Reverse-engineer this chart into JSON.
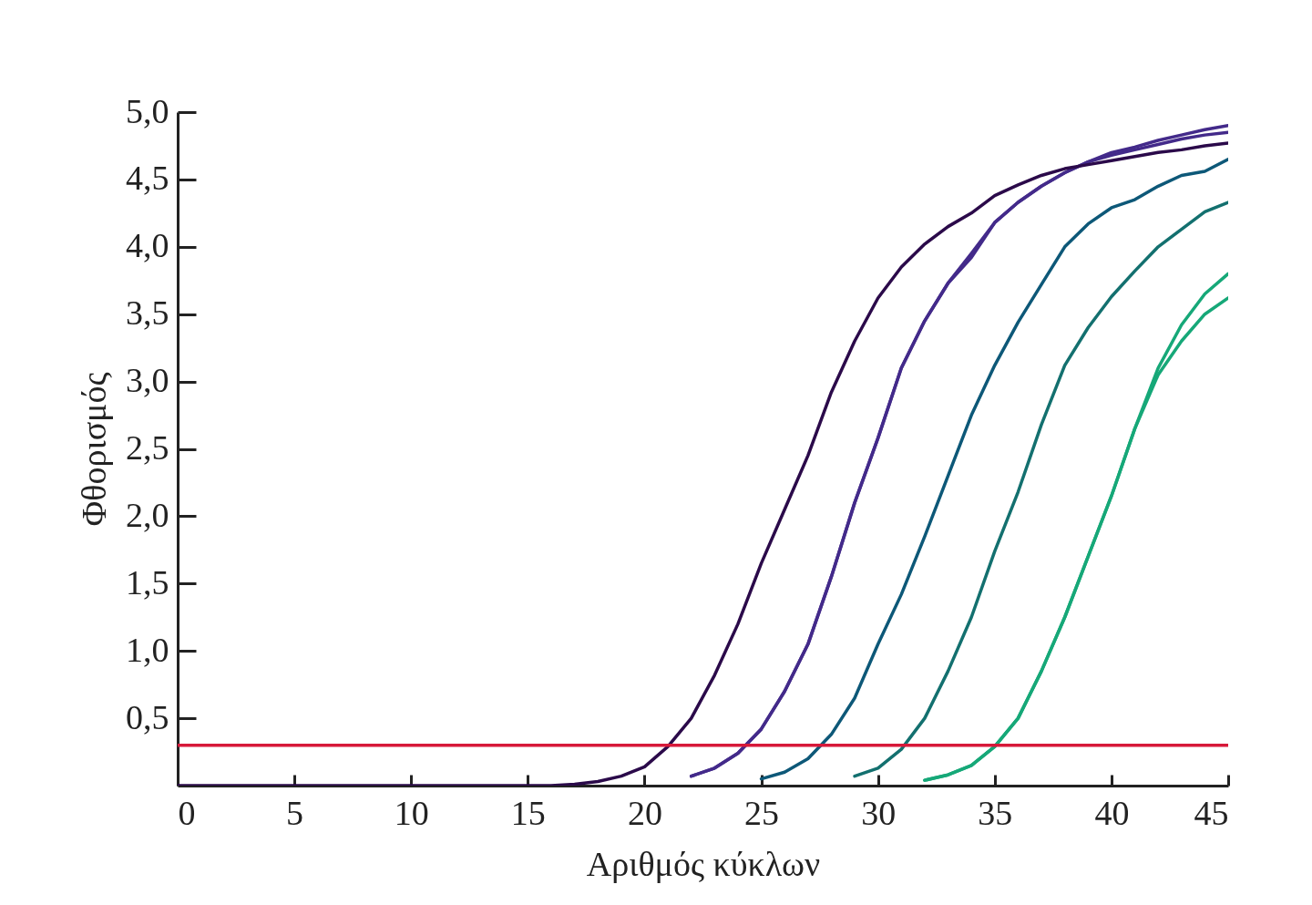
{
  "chart_data": {
    "type": "line",
    "xlabel": "Αριθμός κύκλων",
    "ylabel": "Φθορισμός",
    "x": [
      0,
      1,
      2,
      3,
      4,
      5,
      6,
      7,
      8,
      9,
      10,
      11,
      12,
      13,
      14,
      15,
      16,
      17,
      18,
      19,
      20,
      21,
      22,
      23,
      24,
      25,
      26,
      27,
      28,
      29,
      30,
      31,
      32,
      33,
      34,
      35,
      36,
      37,
      38,
      39,
      40,
      41,
      42,
      43,
      44,
      45
    ],
    "series": [
      {
        "color": "#16a878",
        "values": [
          null,
          null,
          null,
          null,
          null,
          null,
          null,
          null,
          null,
          null,
          null,
          null,
          null,
          null,
          null,
          null,
          null,
          null,
          null,
          null,
          null,
          null,
          null,
          null,
          null,
          null,
          null,
          null,
          null,
          null,
          null,
          null,
          0.04,
          0.08,
          0.15,
          0.29,
          0.5,
          0.85,
          1.25,
          1.7,
          2.15,
          2.65,
          3.05,
          3.3,
          3.5,
          3.62
        ]
      },
      {
        "color": "#16a878",
        "values": [
          null,
          null,
          null,
          null,
          null,
          null,
          null,
          null,
          null,
          null,
          null,
          null,
          null,
          null,
          null,
          null,
          null,
          null,
          null,
          null,
          null,
          null,
          null,
          null,
          null,
          null,
          null,
          null,
          null,
          null,
          null,
          null,
          0.04,
          0.08,
          0.15,
          0.29,
          0.5,
          0.85,
          1.25,
          1.7,
          2.15,
          2.65,
          3.1,
          3.42,
          3.65,
          3.8
        ]
      },
      {
        "color": "#13706f",
        "values": [
          null,
          null,
          null,
          null,
          null,
          null,
          null,
          null,
          null,
          null,
          null,
          null,
          null,
          null,
          null,
          null,
          null,
          null,
          null,
          null,
          null,
          null,
          null,
          null,
          null,
          null,
          null,
          null,
          null,
          0.07,
          0.13,
          0.27,
          0.5,
          0.85,
          1.25,
          1.74,
          2.18,
          2.68,
          3.12,
          3.4,
          3.63,
          3.82,
          4.0,
          4.13,
          4.26,
          4.33
        ]
      },
      {
        "color": "#0d5878",
        "values": [
          null,
          null,
          null,
          null,
          null,
          null,
          null,
          null,
          null,
          null,
          null,
          null,
          null,
          null,
          null,
          null,
          null,
          null,
          null,
          null,
          null,
          null,
          null,
          null,
          null,
          0.05,
          0.1,
          0.2,
          0.38,
          0.65,
          1.05,
          1.42,
          1.85,
          2.3,
          2.75,
          3.12,
          3.44,
          3.72,
          4.0,
          4.17,
          4.29,
          4.35,
          4.45,
          4.53,
          4.56,
          4.65
        ]
      },
      {
        "color": "#432a8a",
        "values": [
          null,
          null,
          null,
          null,
          null,
          null,
          null,
          null,
          null,
          null,
          null,
          null,
          null,
          null,
          null,
          null,
          null,
          null,
          null,
          null,
          null,
          null,
          0.07,
          0.13,
          0.24,
          0.42,
          0.7,
          1.05,
          1.55,
          2.1,
          2.58,
          3.1,
          3.45,
          3.73,
          3.92,
          4.18,
          4.33,
          4.45,
          4.55,
          4.63,
          4.68,
          4.72,
          4.76,
          4.8,
          4.83,
          4.85
        ]
      },
      {
        "color": "#432a8a",
        "values": [
          null,
          null,
          null,
          null,
          null,
          null,
          null,
          null,
          null,
          null,
          null,
          null,
          null,
          null,
          null,
          null,
          null,
          null,
          null,
          null,
          null,
          null,
          0.07,
          0.13,
          0.24,
          0.42,
          0.7,
          1.05,
          1.55,
          2.1,
          2.58,
          3.1,
          3.45,
          3.73,
          3.95,
          4.18,
          4.33,
          4.45,
          4.55,
          4.63,
          4.7,
          4.74,
          4.79,
          4.83,
          4.87,
          4.9
        ]
      },
      {
        "color": "#2b0a4a",
        "values": [
          0,
          0,
          0,
          0,
          0,
          0,
          0,
          0,
          0,
          0,
          0,
          0,
          0,
          0,
          0,
          0,
          0,
          0.01,
          0.03,
          0.07,
          0.14,
          0.29,
          0.5,
          0.82,
          1.2,
          1.65,
          2.05,
          2.45,
          2.92,
          3.3,
          3.62,
          3.85,
          4.02,
          4.15,
          4.25,
          4.38,
          4.46,
          4.53,
          4.58,
          4.61,
          4.64,
          4.67,
          4.7,
          4.72,
          4.75,
          4.77
        ]
      }
    ],
    "ref_lines": [
      {
        "axis": "y",
        "value": 0.3,
        "color": "#d7193a"
      }
    ],
    "xlim": [
      0,
      45
    ],
    "xticks": [
      0,
      5,
      10,
      15,
      20,
      25,
      30,
      35,
      40,
      45
    ],
    "ylim": [
      0,
      5
    ],
    "yticks": [
      {
        "value": 0.5,
        "label": "0,5"
      },
      {
        "value": 1.0,
        "label": "1,0"
      },
      {
        "value": 1.5,
        "label": "1,5"
      },
      {
        "value": 2.0,
        "label": "2,0"
      },
      {
        "value": 2.5,
        "label": "2,5"
      },
      {
        "value": 3.0,
        "label": "3,0"
      },
      {
        "value": 3.5,
        "label": "3,5"
      },
      {
        "value": 4.0,
        "label": "4,0"
      },
      {
        "value": 4.5,
        "label": "4,5"
      },
      {
        "value": 5.0,
        "label": "5,0"
      }
    ]
  }
}
